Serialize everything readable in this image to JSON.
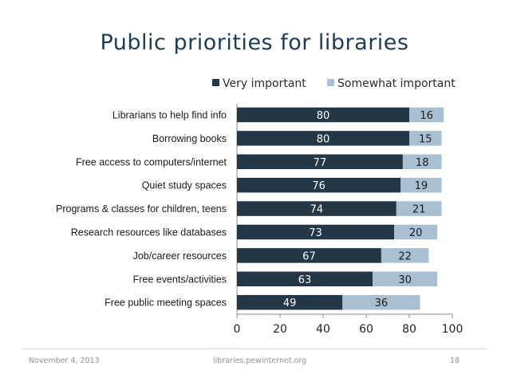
{
  "slide": {
    "title": "Public priorities for libraries",
    "footer_date": "November 4, 2013",
    "footer_source": "libraries.pewinternet.org",
    "footer_page": "18"
  },
  "chart_data": {
    "type": "bar",
    "orientation": "horizontal",
    "stacked": true,
    "title": "Public priorities for libraries",
    "categories": [
      "Librarians to help find info",
      "Borrowing books",
      "Free access to computers/internet",
      "Quiet study spaces",
      "Programs & classes for children, teens",
      "Research resources like databases",
      "Job/career resources",
      "Free events/activities",
      "Free public meeting spaces"
    ],
    "series": [
      {
        "name": "Very important",
        "color": "#243746",
        "values": [
          80,
          80,
          77,
          76,
          74,
          73,
          67,
          63,
          49
        ]
      },
      {
        "name": "Somewhat important",
        "color": "#a9bfd2",
        "values": [
          16,
          15,
          18,
          19,
          21,
          20,
          22,
          30,
          36
        ]
      }
    ],
    "xlim": [
      0,
      100
    ],
    "xticks": [
      0,
      20,
      40,
      60,
      80,
      100
    ],
    "legend": "top",
    "grid": false
  }
}
